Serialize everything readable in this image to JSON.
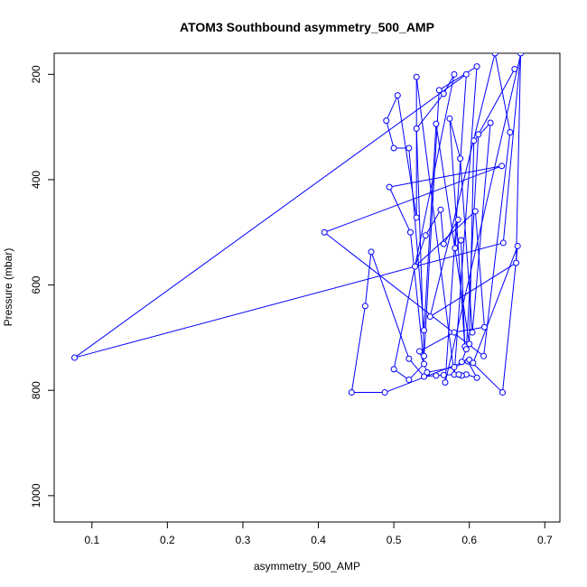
{
  "chart_data": {
    "type": "line",
    "title": "ATOM3 Southbound asymmetry_500_AMP",
    "xlabel": "asymmetry_500_AMP",
    "ylabel": "Pressure (mbar)",
    "xlim": [
      0.05,
      0.72
    ],
    "ylim": [
      1050,
      160
    ],
    "y_reversed": true,
    "x_ticks": [
      "0.1",
      "0.2",
      "0.3",
      "0.4",
      "0.5",
      "0.6",
      "0.7"
    ],
    "x_tick_values": [
      0.1,
      0.2,
      0.3,
      0.4,
      0.5,
      0.6,
      0.7
    ],
    "y_ticks": [
      "200",
      "400",
      "600",
      "800",
      "1000"
    ],
    "y_tick_values": [
      200,
      400,
      600,
      800,
      1000
    ],
    "grid": false,
    "legend": "none",
    "series_color": "#0000ff",
    "points": [
      [
        0.672,
        137
      ],
      [
        0.568,
        785
      ],
      [
        0.596,
        200
      ],
      [
        0.077,
        738
      ],
      [
        0.645,
        520
      ],
      [
        0.668,
        160
      ],
      [
        0.662,
        558
      ],
      [
        0.548,
        660
      ],
      [
        0.634,
        160
      ],
      [
        0.654,
        310
      ],
      [
        0.619,
        735
      ],
      [
        0.408,
        500
      ],
      [
        0.643,
        374
      ],
      [
        0.494,
        414
      ],
      [
        0.522,
        500
      ],
      [
        0.54,
        750
      ],
      [
        0.52,
        780
      ],
      [
        0.5,
        760
      ],
      [
        0.58,
        200
      ],
      [
        0.566,
        237
      ],
      [
        0.53,
        303
      ],
      [
        0.54,
        735
      ],
      [
        0.56,
        230
      ],
      [
        0.61,
        185
      ],
      [
        0.58,
        770
      ],
      [
        0.53,
        205
      ],
      [
        0.53,
        472
      ],
      [
        0.505,
        240
      ],
      [
        0.49,
        288
      ],
      [
        0.5,
        340
      ],
      [
        0.52,
        340
      ],
      [
        0.54,
        686
      ],
      [
        0.556,
        294
      ],
      [
        0.6,
        712
      ],
      [
        0.606,
        326
      ],
      [
        0.628,
        292
      ],
      [
        0.604,
        690
      ],
      [
        0.588,
        360
      ],
      [
        0.574,
        284
      ],
      [
        0.594,
        717
      ],
      [
        0.589,
        515
      ],
      [
        0.581,
        530
      ],
      [
        0.585,
        476
      ],
      [
        0.566,
        522
      ],
      [
        0.562,
        457
      ],
      [
        0.542,
        506
      ],
      [
        0.528,
        565
      ],
      [
        0.608,
        460
      ],
      [
        0.62,
        680
      ],
      [
        0.58,
        690
      ],
      [
        0.534,
        726
      ],
      [
        0.544,
        766
      ],
      [
        0.58,
        756
      ],
      [
        0.598,
        745
      ],
      [
        0.61,
        776
      ],
      [
        0.596,
        770
      ],
      [
        0.59,
        772
      ],
      [
        0.586,
        770
      ],
      [
        0.566,
        771
      ],
      [
        0.556,
        772
      ],
      [
        0.54,
        774
      ],
      [
        0.52,
        740
      ],
      [
        0.47,
        537
      ],
      [
        0.462,
        640
      ],
      [
        0.444,
        804
      ],
      [
        0.488,
        804
      ],
      [
        0.6,
        742
      ],
      [
        0.644,
        804
      ],
      [
        0.664,
        526
      ],
      [
        0.605,
        748
      ],
      [
        0.59,
        746
      ],
      [
        0.596,
        722
      ],
      [
        0.612,
        314
      ],
      [
        0.66,
        190
      ]
    ]
  }
}
